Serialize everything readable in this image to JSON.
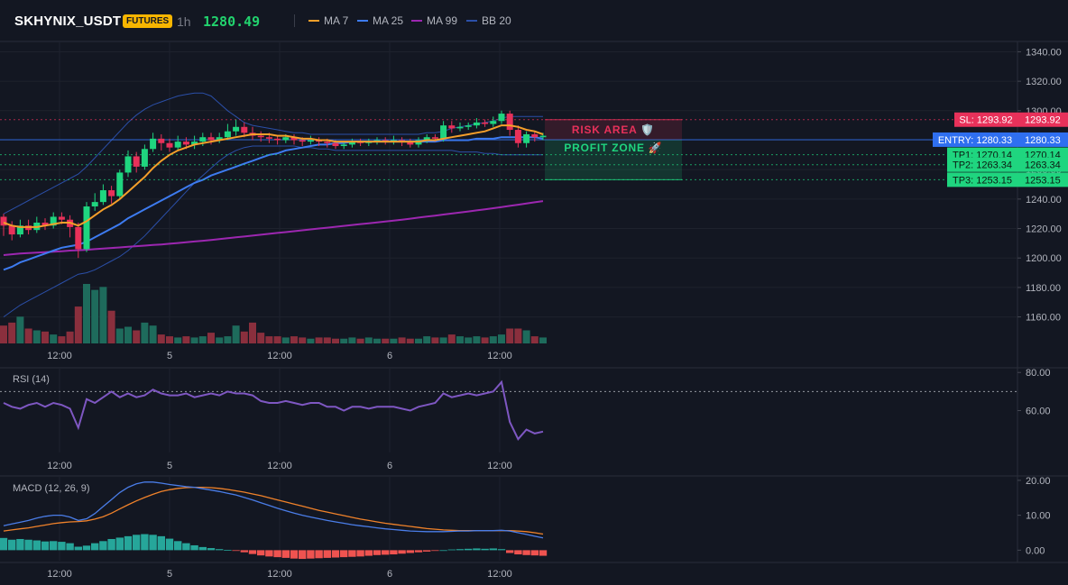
{
  "header": {
    "symbol": "SKHYNIX_USDT",
    "badge": "FUTURES",
    "timeframe": "1h",
    "last_price": "1280.49",
    "indicators": [
      {
        "label": "MA 7",
        "color": "#f59f2a"
      },
      {
        "label": "MA 25",
        "color": "#3d7bf0"
      },
      {
        "label": "MA 99",
        "color": "#9c27b0"
      },
      {
        "label": "BB 20",
        "color": "#2b4fa8"
      }
    ]
  },
  "colors": {
    "up": "#1fd57f",
    "down": "#e8315a",
    "vol_up": "#1e6b5c",
    "vol_down": "#8a2f3d",
    "rsi": "#7e57c2",
    "macd": "#4a7de8",
    "signal": "#f0822a",
    "hist_up": "#26a69a",
    "hist_down": "#ef5350"
  },
  "chart_data": [
    {
      "type": "candlestick",
      "panel": "price",
      "x_tick_labels": [
        "12:00",
        "5",
        "12:00",
        "6",
        "12:00"
      ],
      "y_ticks": [
        1340,
        1320,
        1300,
        1280,
        1260,
        1240,
        1220,
        1200,
        1180,
        1160
      ],
      "y_tick_labels": [
        "1340.00",
        "1320.00",
        "1300.00",
        "1280.00",
        "1260.00",
        "1240.00",
        "1220.00",
        "1200.00",
        "1180.00",
        "1160.00"
      ],
      "ylim": [
        1142,
        1347
      ],
      "candles": [
        [
          1228,
          1222,
          1230,
          1215
        ],
        [
          1222,
          1216,
          1225,
          1212
        ],
        [
          1216,
          1222,
          1226,
          1214
        ],
        [
          1222,
          1219,
          1226,
          1216
        ],
        [
          1219,
          1224,
          1228,
          1217
        ],
        [
          1224,
          1222,
          1227,
          1219
        ],
        [
          1222,
          1228,
          1231,
          1220
        ],
        [
          1228,
          1226,
          1231,
          1223
        ],
        [
          1226,
          1221,
          1229,
          1214
        ],
        [
          1221,
          1206,
          1224,
          1200
        ],
        [
          1206,
          1235,
          1238,
          1204
        ],
        [
          1235,
          1238,
          1244,
          1232
        ],
        [
          1238,
          1246,
          1250,
          1236
        ],
        [
          1246,
          1242,
          1249,
          1237
        ],
        [
          1242,
          1258,
          1260,
          1240
        ],
        [
          1258,
          1269,
          1273,
          1255
        ],
        [
          1269,
          1262,
          1272,
          1258
        ],
        [
          1262,
          1274,
          1277,
          1260
        ],
        [
          1274,
          1281,
          1285,
          1272
        ],
        [
          1281,
          1278,
          1284,
          1273
        ],
        [
          1278,
          1275,
          1281,
          1272
        ],
        [
          1275,
          1279,
          1283,
          1273
        ],
        [
          1279,
          1277,
          1282,
          1274
        ],
        [
          1277,
          1279,
          1283,
          1274
        ],
        [
          1279,
          1282,
          1285,
          1276
        ],
        [
          1282,
          1280,
          1285,
          1277
        ],
        [
          1280,
          1282,
          1285,
          1278
        ],
        [
          1282,
          1286,
          1291,
          1280
        ],
        [
          1286,
          1289,
          1294,
          1283
        ],
        [
          1289,
          1285,
          1292,
          1282
        ],
        [
          1285,
          1283,
          1289,
          1280
        ],
        [
          1283,
          1282,
          1286,
          1279
        ],
        [
          1282,
          1281,
          1285,
          1278
        ],
        [
          1281,
          1280,
          1283,
          1277
        ],
        [
          1280,
          1282,
          1284,
          1278
        ],
        [
          1282,
          1280,
          1284,
          1277
        ],
        [
          1280,
          1279,
          1282,
          1276
        ],
        [
          1279,
          1280,
          1283,
          1277
        ],
        [
          1280,
          1279,
          1282,
          1276
        ],
        [
          1279,
          1278,
          1281,
          1275
        ],
        [
          1278,
          1276,
          1280,
          1274
        ],
        [
          1276,
          1277,
          1279,
          1274
        ],
        [
          1277,
          1279,
          1281,
          1275
        ],
        [
          1279,
          1278,
          1281,
          1276
        ],
        [
          1278,
          1279,
          1281,
          1276
        ],
        [
          1279,
          1280,
          1282,
          1277
        ],
        [
          1280,
          1279,
          1282,
          1277
        ],
        [
          1279,
          1280,
          1283,
          1277
        ],
        [
          1280,
          1279,
          1282,
          1276
        ],
        [
          1279,
          1277,
          1281,
          1275
        ],
        [
          1277,
          1280,
          1282,
          1275
        ],
        [
          1280,
          1282,
          1284,
          1278
        ],
        [
          1282,
          1281,
          1284,
          1279
        ],
        [
          1281,
          1290,
          1293,
          1279
        ],
        [
          1290,
          1288,
          1293,
          1285
        ],
        [
          1288,
          1289,
          1292,
          1286
        ],
        [
          1289,
          1290,
          1292,
          1287
        ],
        [
          1290,
          1292,
          1295,
          1288
        ],
        [
          1292,
          1291,
          1294,
          1289
        ],
        [
          1291,
          1293,
          1296,
          1289
        ],
        [
          1293,
          1298,
          1300,
          1291
        ],
        [
          1298,
          1287,
          1300,
          1283
        ],
        [
          1287,
          1278,
          1290,
          1275
        ],
        [
          1278,
          1284,
          1286,
          1275
        ],
        [
          1284,
          1282,
          1286,
          1279
        ],
        [
          1282,
          1283,
          1285,
          1280
        ]
      ],
      "volume": [
        0.3,
        0.35,
        0.45,
        0.25,
        0.22,
        0.2,
        0.15,
        0.12,
        0.2,
        0.62,
        1.0,
        0.9,
        0.95,
        0.55,
        0.25,
        0.28,
        0.22,
        0.35,
        0.3,
        0.15,
        0.12,
        0.1,
        0.12,
        0.1,
        0.12,
        0.18,
        0.1,
        0.12,
        0.3,
        0.2,
        0.35,
        0.18,
        0.12,
        0.12,
        0.1,
        0.12,
        0.1,
        0.08,
        0.1,
        0.1,
        0.08,
        0.08,
        0.1,
        0.08,
        0.1,
        0.08,
        0.08,
        0.08,
        0.1,
        0.08,
        0.08,
        0.12,
        0.1,
        0.1,
        0.15,
        0.12,
        0.1,
        0.12,
        0.1,
        0.12,
        0.15,
        0.25,
        0.25,
        0.22,
        0.12,
        0.1
      ],
      "ma7": [
        1224,
        1222,
        1221,
        1221,
        1221,
        1222,
        1223,
        1224,
        1224,
        1222,
        1225,
        1229,
        1233,
        1236,
        1240,
        1245,
        1250,
        1255,
        1261,
        1266,
        1270,
        1273,
        1275,
        1277,
        1278,
        1279,
        1280,
        1281,
        1282,
        1283,
        1284,
        1284,
        1284,
        1283,
        1283,
        1282,
        1281,
        1281,
        1280,
        1280,
        1279,
        1279,
        1279,
        1279,
        1279,
        1279,
        1279,
        1279,
        1279,
        1279,
        1279,
        1280,
        1280,
        1281,
        1282,
        1283,
        1284,
        1285,
        1286,
        1288,
        1290,
        1290,
        1289,
        1287,
        1286,
        1284
      ],
      "ma25": [
        1192,
        1194,
        1197,
        1199,
        1201,
        1203,
        1205,
        1207,
        1208,
        1209,
        1211,
        1214,
        1217,
        1220,
        1223,
        1227,
        1230,
        1233,
        1236,
        1239,
        1242,
        1245,
        1248,
        1251,
        1253,
        1256,
        1258,
        1260,
        1262,
        1264,
        1266,
        1268,
        1270,
        1271,
        1273,
        1274,
        1275,
        1276,
        1277,
        1277,
        1278,
        1278,
        1279,
        1279,
        1279,
        1279,
        1279,
        1279,
        1279,
        1279,
        1279,
        1279,
        1279,
        1280,
        1280,
        1280,
        1280,
        1281,
        1281,
        1281,
        1282,
        1282,
        1282,
        1282,
        1282,
        1281
      ],
      "ma99": [
        1202,
        1202.5,
        1203,
        1203.3,
        1203.6,
        1204,
        1204.3,
        1204.6,
        1205,
        1205.3,
        1205.6,
        1206,
        1206.4,
        1206.8,
        1207.2,
        1207.6,
        1208,
        1208.4,
        1208.8,
        1209.2,
        1209.7,
        1210.2,
        1210.7,
        1211.2,
        1211.7,
        1212.2,
        1212.8,
        1213.4,
        1214,
        1214.6,
        1215.2,
        1215.8,
        1216.4,
        1217,
        1217.6,
        1218.2,
        1218.8,
        1219.4,
        1220,
        1220.6,
        1221.2,
        1221.8,
        1222.4,
        1223,
        1223.6,
        1224.2,
        1224.8,
        1225.4,
        1226,
        1226.7,
        1227.4,
        1228.1,
        1228.8,
        1229.5,
        1230.2,
        1230.9,
        1231.6,
        1232.3,
        1233,
        1233.8,
        1234.6,
        1235.4,
        1236.2,
        1237,
        1237.8,
        1238.6
      ],
      "bb_upper": [
        1230,
        1233,
        1236,
        1239,
        1242,
        1245,
        1248,
        1251,
        1254,
        1257,
        1262,
        1268,
        1274,
        1280,
        1286,
        1292,
        1297,
        1301,
        1304,
        1306,
        1308,
        1310,
        1311,
        1312,
        1312,
        1310,
        1305,
        1300,
        1296,
        1292,
        1290,
        1289,
        1288,
        1287,
        1286,
        1285,
        1285,
        1284,
        1284,
        1284,
        1284,
        1284,
        1284,
        1284,
        1284,
        1284,
        1284,
        1284,
        1284,
        1284,
        1284,
        1285,
        1285,
        1286,
        1288,
        1289,
        1290,
        1291,
        1292,
        1293,
        1295,
        1296,
        1296,
        1296,
        1296,
        1296
      ],
      "bb_lower": [
        1160,
        1164,
        1168,
        1171,
        1174,
        1177,
        1180,
        1183,
        1186,
        1189,
        1190,
        1192,
        1195,
        1198,
        1201,
        1205,
        1210,
        1215,
        1221,
        1227,
        1233,
        1239,
        1245,
        1251,
        1256,
        1261,
        1266,
        1270,
        1273,
        1275,
        1276,
        1276,
        1276,
        1276,
        1276,
        1276,
        1275,
        1275,
        1274,
        1274,
        1273,
        1273,
        1273,
        1273,
        1273,
        1273,
        1273,
        1273,
        1273,
        1273,
        1273,
        1273,
        1273,
        1273,
        1273,
        1272,
        1272,
        1272,
        1271,
        1271,
        1270,
        1270,
        1270,
        1270,
        1270,
        1270
      ],
      "levels": [
        {
          "label": "SL: 1293.92",
          "value": 1293.92,
          "value_label": "1293.92",
          "color": "#e8315a"
        },
        {
          "label": "ENTRY: 1280.33",
          "value": 1280.33,
          "value_label": "1280.33",
          "color": "#2f6ff0"
        },
        {
          "label": "TP1: 1270.14",
          "value": 1270.14,
          "value_label": "1270.14",
          "color": "#1fd57f"
        },
        {
          "label": "TP2: 1263.34",
          "value": 1263.34,
          "value_label": "1263.34",
          "color": "#1fd57f"
        },
        {
          "label": "TP3: 1253.15",
          "value": 1253.15,
          "value_label": "1253.15",
          "color": "#1fd57f"
        }
      ],
      "zones": [
        {
          "label": "RISK AREA 🛡️",
          "from": 1293.92,
          "to": 1280.33,
          "color": "#e8315a"
        },
        {
          "label": "PROFIT ZONE 🚀",
          "from": 1280.33,
          "to": 1253.15,
          "color": "#1fd57f"
        }
      ]
    },
    {
      "type": "line",
      "panel": "rsi",
      "title": "RSI (14)",
      "y_ticks": [
        80,
        60
      ],
      "y_tick_labels": [
        "80.00",
        "60.00"
      ],
      "ylim": [
        38,
        82
      ],
      "overbought": 70,
      "values": [
        64,
        62,
        61,
        63,
        64,
        62,
        64,
        63,
        61,
        51,
        66,
        64,
        67,
        70,
        67,
        69,
        67,
        68,
        71,
        69,
        68,
        68,
        69,
        67,
        68,
        69,
        68,
        70,
        69,
        69,
        68,
        65,
        64,
        64,
        65,
        64,
        63,
        64,
        64,
        62,
        62,
        60,
        62,
        62,
        61,
        62,
        62,
        62,
        61,
        60,
        62,
        63,
        64,
        69,
        67,
        68,
        69,
        68,
        69,
        70,
        75,
        54,
        45,
        50,
        48,
        49
      ]
    },
    {
      "type": "line",
      "panel": "macd",
      "title": "MACD (12, 26, 9)",
      "y_ticks": [
        20,
        10,
        0
      ],
      "y_tick_labels": [
        "20.00",
        "10.00",
        "0.00"
      ],
      "ylim": [
        -3,
        21
      ],
      "macd": [
        7.0,
        7.5,
        8.0,
        8.5,
        9.2,
        9.7,
        10.0,
        10.0,
        9.5,
        8.5,
        9.0,
        10.5,
        12.5,
        14.5,
        16.5,
        18.0,
        19.0,
        19.5,
        19.5,
        19.2,
        18.8,
        18.5,
        18.2,
        18.0,
        17.6,
        17.2,
        16.8,
        16.3,
        15.8,
        15.1,
        14.4,
        13.6,
        12.8,
        12.0,
        11.3,
        10.6,
        10.0,
        9.5,
        9.0,
        8.5,
        8.1,
        7.7,
        7.3,
        7.0,
        6.7,
        6.4,
        6.1,
        5.9,
        5.7,
        5.5,
        5.4,
        5.3,
        5.3,
        5.3,
        5.4,
        5.5,
        5.5,
        5.6,
        5.6,
        5.6,
        5.7,
        5.5,
        5.0,
        4.5,
        4.0,
        3.5
      ],
      "signal": [
        5.5,
        5.8,
        6.1,
        6.4,
        6.8,
        7.2,
        7.6,
        7.9,
        8.1,
        8.2,
        8.4,
        8.9,
        9.6,
        10.6,
        11.8,
        13.0,
        14.1,
        15.1,
        16.0,
        16.8,
        17.3,
        17.7,
        17.9,
        18.0,
        18.0,
        17.9,
        17.7,
        17.4,
        17.0,
        16.6,
        16.1,
        15.6,
        15.0,
        14.4,
        13.8,
        13.2,
        12.6,
        12.0,
        11.4,
        10.9,
        10.4,
        9.9,
        9.4,
        8.9,
        8.5,
        8.1,
        7.7,
        7.4,
        7.1,
        6.8,
        6.5,
        6.2,
        6.0,
        5.8,
        5.7,
        5.6,
        5.6,
        5.6,
        5.6,
        5.6,
        5.6,
        5.6,
        5.5,
        5.3,
        5.0,
        4.6
      ],
      "histogram": [
        3.5,
        3.0,
        3.2,
        3.0,
        2.8,
        2.5,
        2.6,
        2.4,
        2.0,
        1.0,
        1.3,
        2.0,
        2.6,
        3.2,
        3.6,
        4.0,
        4.4,
        4.6,
        4.4,
        4.0,
        3.3,
        2.6,
        2.0,
        1.4,
        0.9,
        0.6,
        0.3,
        0.1,
        -0.2,
        -0.6,
        -1.1,
        -1.5,
        -1.8,
        -2.0,
        -2.2,
        -2.4,
        -2.5,
        -2.4,
        -2.3,
        -2.2,
        -2.1,
        -2.0,
        -1.9,
        -1.8,
        -1.6,
        -1.4,
        -1.3,
        -1.2,
        -1.0,
        -0.8,
        -0.6,
        -0.4,
        -0.2,
        0.0,
        0.2,
        0.3,
        0.4,
        0.5,
        0.4,
        0.5,
        0.3,
        -0.8,
        -1.2,
        -1.4,
        -1.5,
        -1.6
      ]
    }
  ]
}
